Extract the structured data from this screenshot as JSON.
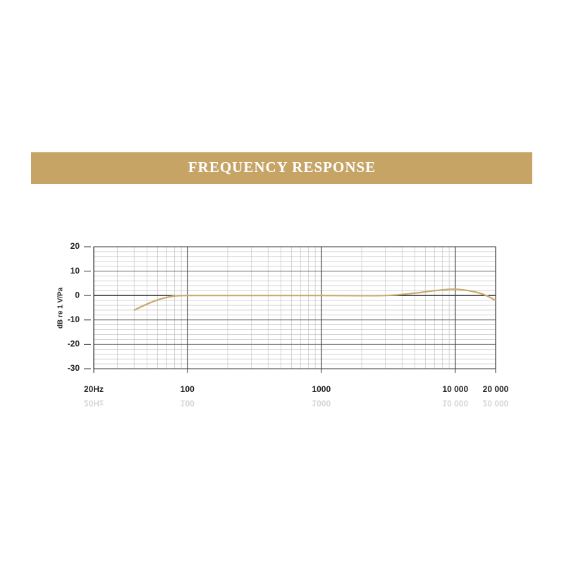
{
  "chart_data": {
    "type": "line",
    "title": "FREQUENCY RESPONSE",
    "ylabel": "dB re 1 V/Pa",
    "xscale": "log",
    "grid": true,
    "xlim": [
      20,
      20000
    ],
    "ylim": [
      -30,
      20
    ],
    "xticks": [
      {
        "value": 20,
        "label": "20Hz"
      },
      100,
      1000,
      {
        "value": 10000,
        "label": "10 000"
      },
      {
        "value": 20000,
        "label": "20 000"
      }
    ],
    "yticks": [
      20,
      10,
      0,
      -10,
      -20,
      -30
    ],
    "x": [
      40,
      50,
      60,
      70,
      80,
      100,
      300,
      1000,
      3000,
      5000,
      7000,
      10000,
      14000,
      17000,
      20000
    ],
    "series": [
      {
        "color": "#c9a96e",
        "values": [
          -6,
          -3.5,
          -1.8,
          -0.8,
          -0.2,
          0,
          0,
          0,
          0,
          1,
          2,
          2.6,
          1.5,
          0,
          -2
        ]
      }
    ]
  }
}
